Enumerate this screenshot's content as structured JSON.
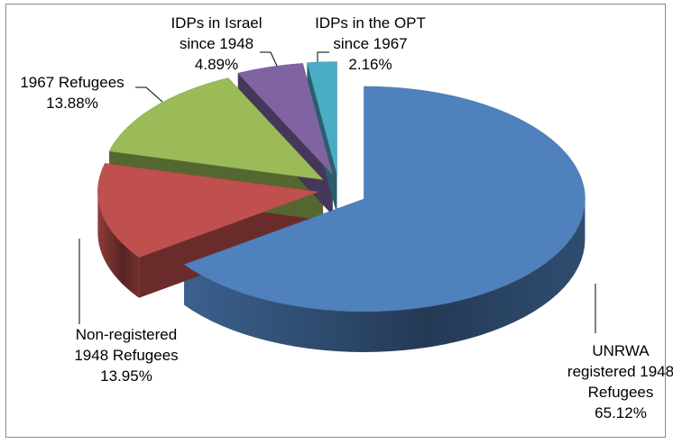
{
  "chart_data": {
    "type": "pie3d",
    "categories": [
      "UNRWA registered 1948 Refugees",
      "Non-registered 1948 Refugees",
      "1967 Refugees",
      "IDPs in Israel since 1948",
      "IDPs in the OPT since 1967"
    ],
    "values": [
      65.12,
      13.95,
      13.88,
      4.89,
      2.16
    ],
    "value_labels": [
      "65.12%",
      "13.95%",
      "13.88%",
      "4.89%",
      "2.16%"
    ],
    "colors": [
      "#4f81bd",
      "#c0504d",
      "#9bbb59",
      "#8064a2",
      "#4bacc6"
    ]
  }
}
